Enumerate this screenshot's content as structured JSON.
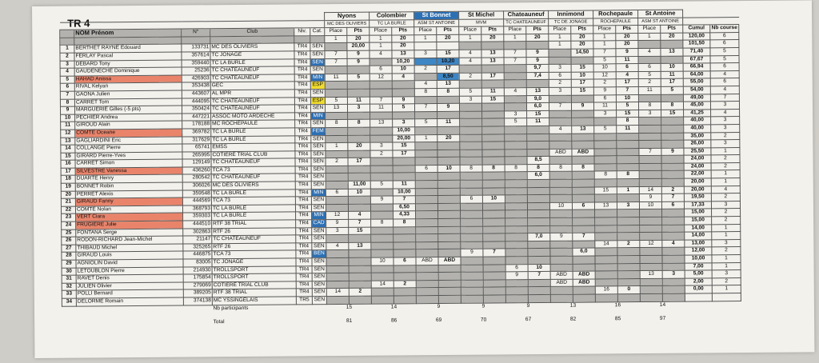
{
  "title": "TR 4",
  "colors": {
    "gray": "#b3b2ae",
    "blue": "#2c6fb3",
    "yellow": "#f1dc2e",
    "salmon": "#e9846b"
  },
  "headers": {
    "name": "NOM Prénom",
    "license": "N°",
    "club": "Club",
    "level": "Niv.",
    "category": "Cat.",
    "place": "Place",
    "points": "Pts",
    "cumul": "Cumul",
    "races": "Nb course"
  },
  "events": [
    {
      "name": "Nyons",
      "club": "MC DES OLIVIERS",
      "highlight": false
    },
    {
      "name": "Colombier",
      "club": "TC LA BURLE",
      "highlight": false
    },
    {
      "name": "St Bonnet",
      "club": "ASM ST ANTOINE",
      "highlight": true
    },
    {
      "name": "St Michel",
      "club": "MVM",
      "highlight": false
    },
    {
      "name": "Chateauneuf",
      "club": "TC CHATEAUNEUF",
      "highlight": false
    },
    {
      "name": "Innimond",
      "club": "TC DE JONAGE",
      "highlight": false
    },
    {
      "name": "Rochepaule",
      "club": "ROCHEPAULE",
      "highlight": false
    },
    {
      "name": "St Antoine",
      "club": "ASM ST ANTOINE",
      "highlight": false
    }
  ],
  "max_row": {
    "values": [
      "1",
      "20",
      "1",
      "20",
      "1",
      "20",
      "1",
      "20",
      "1",
      "20",
      "1",
      "20",
      "1",
      "20",
      "1",
      "20"
    ],
    "cumul": "120,00",
    "races": "6"
  },
  "rows": [
    {
      "n": "1",
      "name": "BERTHET RAYNE Edouard",
      "lic": "133731",
      "club": "MC DES OLIVIERS",
      "niv": "TR4",
      "cat": "SEN",
      "cat_color": "",
      "name_color": "",
      "cells": [
        "",
        "20,00",
        "1",
        "20",
        "",
        "",
        "",
        "",
        "",
        "",
        "1",
        "20",
        "1",
        "20",
        "",
        ""
      ],
      "cumul": "101,50",
      "races": "6"
    },
    {
      "n": "2",
      "name": "FERLAY Pascal",
      "lic": "357614",
      "club": "TC JONAGE",
      "niv": "TR4",
      "cat": "SEN",
      "cat_color": "",
      "name_color": "",
      "cells": [
        "7",
        "9",
        "4",
        "13",
        "3",
        "15",
        "4",
        "13",
        "7",
        "9",
        "",
        "14,50",
        "7",
        "9",
        "4",
        "13"
      ],
      "cumul": "71,40",
      "races": "5"
    },
    {
      "n": "3",
      "name": "DEBARD Tony",
      "lic": "359440",
      "club": "TC LA BURLE",
      "niv": "TR4",
      "cat": "SEN",
      "cat_color": "blue",
      "name_color": "",
      "cells": [
        "7",
        "9",
        "",
        "10,20",
        "",
        "10,20",
        "4",
        "13",
        "7",
        "9",
        "",
        "",
        "5",
        "11",
        "",
        ""
      ],
      "cumul": "67,67",
      "races": "5"
    },
    {
      "n": "4",
      "name": "GAUDENECHE Dominique",
      "lic": "25236",
      "club": "TC CHATEAUNEUF",
      "niv": "TR4",
      "cat": "SEN",
      "cat_color": "",
      "name_color": "",
      "cells": [
        "",
        "",
        "6",
        "10",
        "2",
        "17",
        "",
        "",
        "",
        "9,7",
        "3",
        "15",
        "10",
        "6",
        "6",
        "10"
      ],
      "cumul": "66,94",
      "races": "6"
    },
    {
      "n": "5",
      "name": "HAHAD Anissa",
      "lic": "426903",
      "club": "TC CHATEAUNEUF",
      "niv": "TR4",
      "cat": "MIN",
      "cat_color": "blue",
      "name_color": "salmon",
      "cells": [
        "11",
        "5",
        "12",
        "4",
        "",
        "8,50",
        "2",
        "17",
        "",
        "7,4",
        "6",
        "10",
        "12",
        "4",
        "5",
        "11"
      ],
      "cumul": "64,00",
      "races": "4"
    },
    {
      "n": "6",
      "name": "RIVAL Kelyan",
      "lic": "353438",
      "club": "GEC",
      "niv": "TR4",
      "cat": "ESP",
      "cat_color": "yellow",
      "name_color": "",
      "cells": [
        "",
        "",
        "",
        "",
        "4",
        "13",
        "",
        "",
        "",
        "",
        "2",
        "17",
        "2",
        "17",
        "2",
        "17"
      ],
      "cumul": "55,00",
      "races": "6"
    },
    {
      "n": "7",
      "name": "GAONA Julien",
      "lic": "443607",
      "club": "AL MPR",
      "niv": "TR4",
      "cat": "SEN",
      "cat_color": "",
      "name_color": "",
      "cells": [
        "",
        "",
        "",
        "",
        "8",
        "8",
        "5",
        "11",
        "4",
        "13",
        "3",
        "15",
        "9",
        "7",
        "11",
        "5"
      ],
      "cumul": "54,00",
      "races": "4"
    },
    {
      "n": "8",
      "name": "CARRET Tom",
      "lic": "444095",
      "club": "TC CHATEAUNEUF",
      "niv": "TR4",
      "cat": "ESP",
      "cat_color": "yellow",
      "name_color": "",
      "cells": [
        "5",
        "11",
        "7",
        "9",
        "",
        "",
        "3",
        "15",
        "",
        "9,0",
        "",
        "",
        "6",
        "10",
        "",
        ""
      ],
      "cumul": "49,00",
      "races": "7"
    },
    {
      "n": "9",
      "name": "MARGUERIE Gilles (-5 pts)",
      "lic": "350424",
      "club": "TC CHATEAUNEUF",
      "niv": "TR4",
      "cat": "SEN",
      "cat_color": "",
      "name_color": "",
      "cells": [
        "13",
        "3",
        "11",
        "5",
        "7",
        "9",
        "",
        "",
        "",
        "6,0",
        "7",
        "9",
        "11",
        "5",
        "8",
        "8"
      ],
      "cumul": "45,00",
      "races": "3"
    },
    {
      "n": "10",
      "name": "PECHIER Andrea",
      "lic": "447221",
      "club": "ASSOC MOTO ARDECHE",
      "niv": "TR4",
      "cat": "MIN",
      "cat_color": "blue",
      "name_color": "",
      "cells": [
        "",
        "",
        "",
        "",
        "",
        "",
        "",
        "",
        "3",
        "15",
        "",
        "",
        "3",
        "15",
        "3",
        "15"
      ],
      "cumul": "41,25",
      "races": "4"
    },
    {
      "n": "11",
      "name": "GIROUD Alain",
      "lic": "178188",
      "club": "MC ROCHEPAULE",
      "niv": "TR4",
      "cat": "SEN",
      "cat_color": "",
      "name_color": "",
      "cells": [
        "8",
        "8",
        "13",
        "3",
        "5",
        "11",
        "",
        "",
        "5",
        "11",
        "",
        "",
        "",
        "8",
        "",
        ""
      ],
      "cumul": "40,00",
      "races": "3"
    },
    {
      "n": "12",
      "name": "COMTE Oceane",
      "lic": "369782",
      "club": "TC LA BURLE",
      "niv": "TR4",
      "cat": "FEM",
      "cat_color": "blue",
      "name_color": "salmon",
      "cells": [
        "",
        "",
        "",
        "10,00",
        "",
        "",
        "",
        "",
        "",
        "",
        "4",
        "13",
        "5",
        "11",
        "",
        ""
      ],
      "cumul": "40,00",
      "races": "3"
    },
    {
      "n": "13",
      "name": "GAGLIARDINI Eric",
      "lic": "317629",
      "club": "TC LA BURLE",
      "niv": "TR4",
      "cat": "SEN",
      "cat_color": "",
      "name_color": "",
      "cells": [
        "",
        "",
        "",
        "20,00",
        "1",
        "20",
        "",
        "",
        "",
        "",
        "",
        "",
        "",
        "",
        "",
        ""
      ],
      "cumul": "35,00",
      "races": "2"
    },
    {
      "n": "14",
      "name": "COLLANGE Pierre",
      "lic": "65741",
      "club": "EMSS",
      "niv": "TR4",
      "cat": "SEN",
      "cat_color": "",
      "name_color": "",
      "cells": [
        "1",
        "20",
        "3",
        "15",
        "",
        "",
        "",
        "",
        "",
        "",
        "",
        "",
        "",
        "",
        "",
        ""
      ],
      "cumul": "26,00",
      "races": "3"
    },
    {
      "n": "15",
      "name": "GIRARD Pierre-Yves",
      "lic": "265995",
      "club": "COTIERE TRIAL CLUB",
      "niv": "TR4",
      "cat": "SEN",
      "cat_color": "",
      "name_color": "",
      "cells": [
        "",
        "",
        "2",
        "17",
        "",
        "",
        "",
        "",
        "",
        "",
        "ABD",
        "ABD",
        "",
        "",
        "7",
        "9"
      ],
      "cumul": "25,50",
      "races": "1"
    },
    {
      "n": "16",
      "name": "CARRET Simon",
      "lic": "129149",
      "club": "TC CHATEAUNEUF",
      "niv": "TR4",
      "cat": "SEN",
      "cat_color": "",
      "name_color": "",
      "cells": [
        "2",
        "17",
        "",
        "",
        "",
        "",
        "",
        "",
        "",
        "8,5",
        "",
        "",
        "",
        "",
        "",
        ""
      ],
      "cumul": "24,00",
      "races": "2"
    },
    {
      "n": "17",
      "name": "SILVESTRE Vanessa",
      "lic": "436260",
      "club": "TCA 73",
      "niv": "TR4",
      "cat": "SEN",
      "cat_color": "",
      "name_color": "salmon",
      "cells": [
        "",
        "",
        "",
        "",
        "6",
        "10",
        "8",
        "8",
        "8",
        "8",
        "8",
        "8",
        "",
        "",
        "",
        ""
      ],
      "cumul": "24,00",
      "races": "2"
    },
    {
      "n": "18",
      "name": "DUARTE Henry",
      "lic": "280542",
      "club": "TC CHATEAUNEUF",
      "niv": "TR4",
      "cat": "SEN",
      "cat_color": "",
      "name_color": "",
      "cells": [
        "",
        "",
        "",
        "",
        "",
        "",
        "",
        "",
        "",
        "6,0",
        "",
        "",
        "8",
        "8",
        "",
        ""
      ],
      "cumul": "22,00",
      "races": "1"
    },
    {
      "n": "19",
      "name": "BONNET Robin",
      "lic": "306026",
      "club": "MC DES OLIVIERS",
      "niv": "TR4",
      "cat": "SEN",
      "cat_color": "",
      "name_color": "",
      "cells": [
        "",
        "11,00",
        "5",
        "11",
        "",
        "",
        "",
        "",
        "",
        "",
        "",
        "",
        "",
        "",
        "",
        ""
      ],
      "cumul": "20,00",
      "races": "1"
    },
    {
      "n": "20",
      "name": "PERRET Alexis",
      "lic": "359548",
      "club": "TC LA BURLE",
      "niv": "TR4",
      "cat": "MIN",
      "cat_color": "blue",
      "name_color": "",
      "cells": [
        "6",
        "10",
        "",
        "10,00",
        "",
        "",
        "",
        "",
        "",
        "",
        "",
        "",
        "15",
        "1",
        "14",
        "2"
      ],
      "cumul": "20,00",
      "races": "4"
    },
    {
      "n": "21",
      "name": "GIRAUD Fanny",
      "lic": "444569",
      "club": "TCA 73",
      "niv": "TR4",
      "cat": "SEN",
      "cat_color": "",
      "name_color": "salmon",
      "cells": [
        "",
        "",
        "9",
        "7",
        "",
        "",
        "6",
        "10",
        "",
        "",
        "",
        "",
        "",
        "",
        "9",
        "7"
      ],
      "cumul": "19,50",
      "races": "2"
    },
    {
      "n": "22",
      "name": "COMTE Nolan",
      "lic": "368793",
      "club": "TC LA BURLE",
      "niv": "TR4",
      "cat": "SEN",
      "cat_color": "",
      "name_color": "",
      "cells": [
        "",
        "",
        "",
        "6,50",
        "",
        "",
        "",
        "",
        "",
        "",
        "10",
        "6",
        "13",
        "3",
        "10",
        "6"
      ],
      "cumul": "17,33",
      "races": "3"
    },
    {
      "n": "23",
      "name": "VERT Ciara",
      "lic": "359303",
      "club": "TC LA BURLE",
      "niv": "TR4",
      "cat": "MIN",
      "cat_color": "blue",
      "name_color": "salmon",
      "cells": [
        "12",
        "4",
        "",
        "4,33",
        "",
        "",
        "",
        "",
        "",
        "",
        "",
        "",
        "",
        "",
        "",
        ""
      ],
      "cumul": "15,00",
      "races": "2"
    },
    {
      "n": "24",
      "name": "FRUGIERE Julie",
      "lic": "444510",
      "club": "RTF 38 TRIAL",
      "niv": "TR4",
      "cat": "CAD",
      "cat_color": "blue",
      "name_color": "salmon",
      "cells": [
        "9",
        "7",
        "8",
        "8",
        "",
        "",
        "",
        "",
        "",
        "",
        "",
        "",
        "",
        "",
        "",
        ""
      ],
      "cumul": "15,00",
      "races": "2"
    },
    {
      "n": "25",
      "name": "FONTANA Serge",
      "lic": "302863",
      "club": "RTF 26",
      "niv": "TR4",
      "cat": "SEN",
      "cat_color": "",
      "name_color": "",
      "cells": [
        "3",
        "15",
        "",
        "",
        "",
        "",
        "",
        "",
        "",
        "",
        "",
        "",
        "",
        "",
        "",
        ""
      ],
      "cumul": "14,00",
      "races": "1"
    },
    {
      "n": "26",
      "name": "RODON-RICHARD Jean-Michel",
      "lic": "21147",
      "club": "TC CHATEAUNEUF",
      "niv": "TR4",
      "cat": "SEN",
      "cat_color": "",
      "name_color": "",
      "cells": [
        "",
        "",
        "",
        "",
        "",
        "",
        "",
        "",
        "",
        "7,0",
        "9",
        "7",
        "",
        "",
        "",
        ""
      ],
      "cumul": "14,00",
      "races": "1"
    },
    {
      "n": "27",
      "name": "THIBAUD Michel",
      "lic": "325265",
      "club": "RTF 26",
      "niv": "TR4",
      "cat": "SEN",
      "cat_color": "",
      "name_color": "",
      "cells": [
        "4",
        "13",
        "",
        "",
        "",
        "",
        "",
        "",
        "",
        "",
        "",
        "",
        "14",
        "2",
        "12",
        "4"
      ],
      "cumul": "13,00",
      "races": "3"
    },
    {
      "n": "28",
      "name": "GIRAUD Louis",
      "lic": "446875",
      "club": "TCA 73",
      "niv": "TR4",
      "cat": "BEN",
      "cat_color": "blue",
      "name_color": "",
      "cells": [
        "",
        "",
        "",
        "",
        "",
        "",
        "9",
        "7",
        "",
        "",
        "",
        "6,0",
        "",
        "",
        "",
        ""
      ],
      "cumul": "12,00",
      "races": "2"
    },
    {
      "n": "29",
      "name": "AGNIOLIN David",
      "lic": "83005",
      "club": "TC JONAGE",
      "niv": "TR4",
      "cat": "SEN",
      "cat_color": "",
      "name_color": "",
      "cells": [
        "",
        "",
        "10",
        "6",
        "ABD",
        "ABD",
        "",
        "",
        "",
        "",
        "",
        "",
        "",
        "",
        "",
        ""
      ],
      "cumul": "10,00",
      "races": "1"
    },
    {
      "n": "30",
      "name": "LETOUBLON Pierre",
      "lic": "214930",
      "club": "TROLLSPORT",
      "niv": "TR4",
      "cat": "SEN",
      "cat_color": "",
      "name_color": "",
      "cells": [
        "",
        "",
        "",
        "",
        "",
        "",
        "",
        "",
        "6",
        "10",
        "",
        "",
        "",
        "",
        "",
        ""
      ],
      "cumul": "7,00",
      "races": "1"
    },
    {
      "n": "31",
      "name": "RAVET Denis",
      "lic": "175854",
      "club": "TROLLSPORT",
      "niv": "TR4",
      "cat": "SEN",
      "cat_color": "",
      "name_color": "",
      "cells": [
        "",
        "",
        "",
        "",
        "",
        "",
        "",
        "",
        "9",
        "7",
        "ABD",
        "ABD",
        "",
        "",
        "13",
        "3"
      ],
      "cumul": "5,00",
      "races": "3"
    },
    {
      "n": "32",
      "name": "JULIEN Olivier",
      "lic": "279069",
      "club": "COTIERE TRIAL CLUB",
      "niv": "TR4",
      "cat": "SEN",
      "cat_color": "",
      "name_color": "",
      "cells": [
        "",
        "",
        "14",
        "2",
        "",
        "",
        "",
        "",
        "",
        "",
        "ABD",
        "ABD",
        "",
        "",
        "",
        ""
      ],
      "cumul": "2,00",
      "races": "2"
    },
    {
      "n": "33",
      "name": "POLLI Bernard",
      "lic": "389205",
      "club": "RTF 38 TRIAL",
      "niv": "TR4",
      "cat": "SEN",
      "cat_color": "",
      "name_color": "",
      "cells": [
        "14",
        "2",
        "",
        "",
        "",
        "",
        "",
        "",
        "",
        "",
        "",
        "",
        "16",
        "0",
        "",
        ""
      ],
      "cumul": "0,00",
      "races": "1"
    },
    {
      "n": "34",
      "name": "DELORME Romain",
      "lic": "374138",
      "club": "MC YSSINGELAIS",
      "niv": "TR5",
      "cat": "SEN",
      "cat_color": "",
      "name_color": "",
      "cells": [
        "",
        "",
        "",
        "",
        "",
        "",
        "",
        "",
        "",
        "",
        "",
        "",
        "",
        "",
        "",
        ""
      ],
      "cumul": "",
      "races": ""
    }
  ],
  "footer": {
    "participants_label": "Nb participants",
    "participants": [
      "15",
      "14",
      "9",
      "9",
      "9",
      "13",
      "16",
      "14"
    ],
    "total_label": "Total",
    "totals": [
      "81",
      "86",
      "69",
      "70",
      "67",
      "82",
      "85",
      "97"
    ]
  }
}
